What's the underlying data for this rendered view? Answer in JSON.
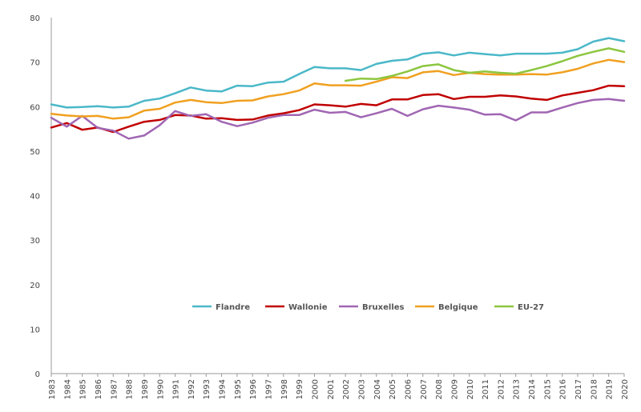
{
  "chart_data": {
    "type": "line",
    "title": "",
    "xlabel": "",
    "ylabel": "",
    "ylim": [
      0,
      80
    ],
    "yticks": [
      0,
      10,
      20,
      30,
      40,
      50,
      60,
      70,
      80
    ],
    "grid": false,
    "legend_position": "bottom-center",
    "x": [
      1983,
      1984,
      1985,
      1986,
      1987,
      1988,
      1989,
      1990,
      1991,
      1992,
      1993,
      1994,
      1995,
      1996,
      1997,
      1998,
      1999,
      2000,
      2001,
      2002,
      2003,
      2004,
      2005,
      2006,
      2007,
      2008,
      2009,
      2010,
      2011,
      2012,
      2013,
      2014,
      2015,
      2016,
      2017,
      2018,
      2019,
      2020
    ],
    "series": [
      {
        "name": "Flandre",
        "color": "#4bb8c8",
        "values": [
          60.5,
          59.8,
          59.9,
          60.1,
          59.8,
          60.0,
          61.3,
          61.8,
          63.0,
          64.3,
          63.6,
          63.4,
          64.7,
          64.6,
          65.4,
          65.6,
          67.3,
          68.9,
          68.6,
          68.6,
          68.2,
          69.6,
          70.3,
          70.6,
          71.9,
          72.2,
          71.5,
          72.1,
          71.8,
          71.5,
          71.9,
          71.9,
          71.9,
          72.1,
          72.9,
          74.6,
          75.4,
          74.7
        ]
      },
      {
        "name": "Wallonie",
        "color": "#c00000",
        "values": [
          55.3,
          56.3,
          54.8,
          55.3,
          54.3,
          55.5,
          56.6,
          57.0,
          58.1,
          58.0,
          57.3,
          57.4,
          57.0,
          57.1,
          58.0,
          58.5,
          59.2,
          60.5,
          60.3,
          60.0,
          60.6,
          60.3,
          61.6,
          61.6,
          62.6,
          62.8,
          61.7,
          62.2,
          62.2,
          62.5,
          62.3,
          61.8,
          61.5,
          62.5,
          63.1,
          63.7,
          64.7,
          64.6
        ]
      },
      {
        "name": "Bruxelles",
        "color": "#a066b3",
        "values": [
          57.5,
          55.5,
          57.9,
          55.2,
          54.6,
          52.8,
          53.5,
          55.8,
          59.0,
          57.9,
          58.3,
          56.6,
          55.6,
          56.4,
          57.5,
          58.1,
          58.1,
          59.3,
          58.6,
          58.8,
          57.6,
          58.5,
          59.5,
          57.9,
          59.4,
          60.2,
          59.8,
          59.3,
          58.2,
          58.3,
          56.9,
          58.7,
          58.7,
          59.8,
          60.8,
          61.5,
          61.7,
          61.3
        ]
      },
      {
        "name": "Belgique",
        "color": "#f0a020",
        "values": [
          58.4,
          58.0,
          57.8,
          57.9,
          57.3,
          57.6,
          59.1,
          59.5,
          60.9,
          61.5,
          61.0,
          60.8,
          61.3,
          61.4,
          62.3,
          62.8,
          63.6,
          65.2,
          64.8,
          64.8,
          64.7,
          65.6,
          66.6,
          66.4,
          67.7,
          68.0,
          67.1,
          67.6,
          67.3,
          67.2,
          67.2,
          67.3,
          67.2,
          67.7,
          68.5,
          69.7,
          70.5,
          70.0
        ]
      },
      {
        "name": "EU-27",
        "color": "#8cc63f",
        "values": [
          null,
          null,
          null,
          null,
          null,
          null,
          null,
          null,
          null,
          null,
          null,
          null,
          null,
          null,
          null,
          null,
          null,
          null,
          null,
          65.8,
          66.3,
          66.2,
          66.9,
          67.9,
          69.1,
          69.5,
          68.2,
          67.6,
          67.9,
          67.6,
          67.4,
          68.2,
          69.1,
          70.2,
          71.4,
          72.3,
          73.1,
          72.3
        ]
      }
    ]
  }
}
